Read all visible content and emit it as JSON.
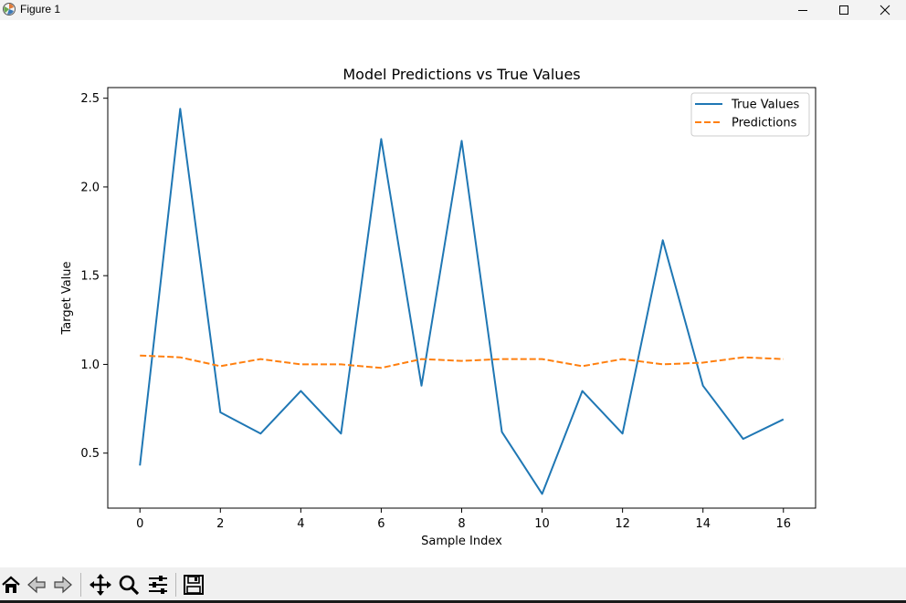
{
  "window": {
    "title": "Figure 1"
  },
  "toolbar": {
    "buttons": [
      {
        "name": "home-icon"
      },
      {
        "name": "back-icon"
      },
      {
        "name": "forward-icon"
      },
      {
        "name": "pan-icon"
      },
      {
        "name": "zoom-icon"
      },
      {
        "name": "configure-subplots-icon"
      },
      {
        "name": "save-icon"
      }
    ]
  },
  "chart_data": {
    "type": "line",
    "title": "Model Predictions vs True Values",
    "xlabel": "Sample Index",
    "ylabel": "Target Value",
    "xlim": [
      -0.8,
      16.8
    ],
    "ylim": [
      0.19,
      2.56
    ],
    "xticks": [
      0,
      2,
      4,
      6,
      8,
      10,
      12,
      14,
      16
    ],
    "xtick_labels": [
      "0",
      "2",
      "4",
      "6",
      "8",
      "10",
      "12",
      "14",
      "16"
    ],
    "yticks": [
      0.5,
      1.0,
      1.5,
      2.0,
      2.5
    ],
    "ytick_labels": [
      "0.5",
      "1.0",
      "1.5",
      "2.0",
      "2.5"
    ],
    "grid": false,
    "legend_position": "top-right",
    "x": [
      0,
      1,
      2,
      3,
      4,
      5,
      6,
      7,
      8,
      9,
      10,
      11,
      12,
      13,
      14,
      15,
      16
    ],
    "series": [
      {
        "name": "True Values",
        "color": "#1f77b4",
        "style": "solid",
        "values": [
          0.43,
          2.44,
          0.73,
          0.61,
          0.85,
          0.61,
          2.27,
          0.88,
          2.26,
          0.62,
          0.27,
          0.85,
          0.61,
          1.7,
          0.88,
          0.58,
          0.69
        ]
      },
      {
        "name": "Predictions",
        "color": "#ff7f0e",
        "style": "dashed",
        "values": [
          1.05,
          1.04,
          0.99,
          1.03,
          1.0,
          1.0,
          0.98,
          1.03,
          1.02,
          1.03,
          1.03,
          0.99,
          1.03,
          1.0,
          1.01,
          1.04,
          1.03
        ]
      }
    ]
  }
}
